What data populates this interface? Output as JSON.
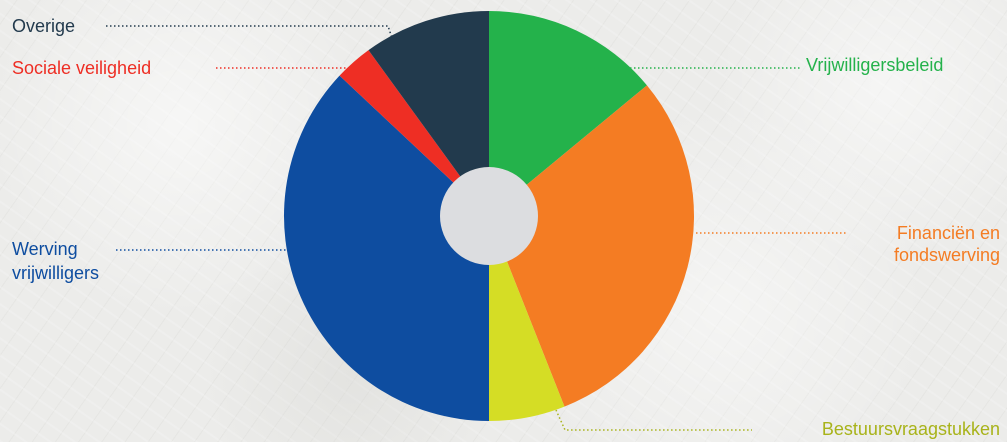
{
  "chart_data": {
    "type": "pie",
    "donut_hole": true,
    "start_angle_deg": 0,
    "direction": "clockwise",
    "categories": [
      "Vrijwilligersbeleid",
      "Financiën en fondswerving",
      "Bestuursvraagstukken",
      "Werving vrijwilligers",
      "Sociale veiligheid",
      "Overige"
    ],
    "values": [
      14,
      30,
      6,
      37,
      3,
      10
    ],
    "colors": [
      "#24b24b",
      "#f47c23",
      "#d5dd25",
      "#0e4da0",
      "#ee2e24",
      "#223a4d"
    ],
    "hole_color": "#dcdde0",
    "labels": [
      {
        "lines": [
          "Vrijwilligersbeleid"
        ],
        "color": "#24b24b",
        "align": "left"
      },
      {
        "lines": [
          "Financiën en",
          "fondswerving"
        ],
        "color": "#f47c23",
        "align": "right"
      },
      {
        "lines": [
          "Bestuursvraagstukken"
        ],
        "color": "#a8b31a",
        "align": "right"
      },
      {
        "lines": [
          "Werving",
          "vrijwilligers"
        ],
        "color": "#0e4da0",
        "align": "left"
      },
      {
        "lines": [
          "Sociale veiligheid"
        ],
        "color": "#ee2e24",
        "align": "left"
      },
      {
        "lines": [
          "Overige"
        ],
        "color": "#223a4d",
        "align": "left"
      }
    ]
  }
}
